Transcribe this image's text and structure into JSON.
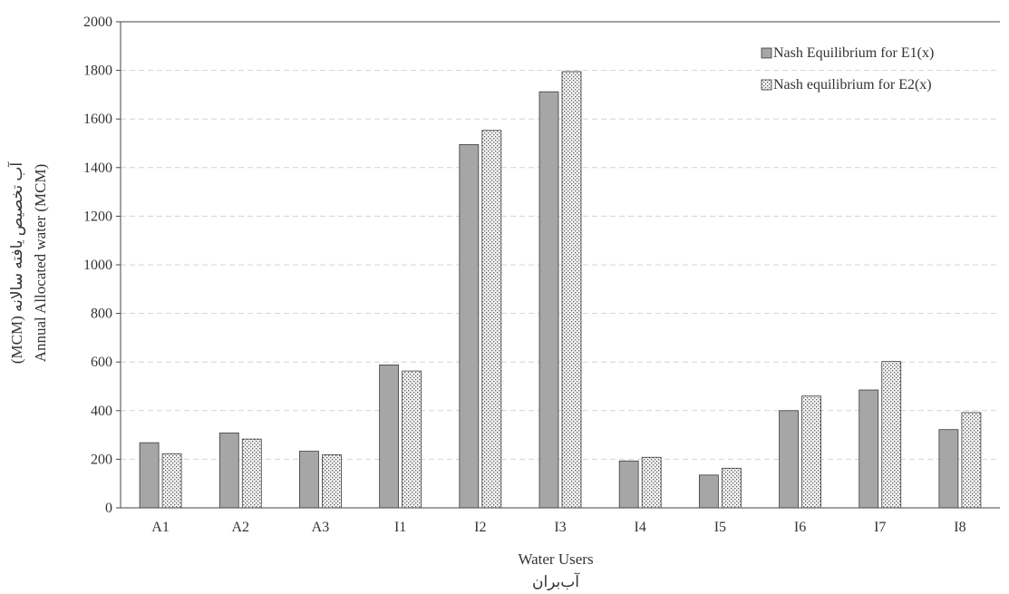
{
  "chart_data": {
    "type": "bar",
    "title": "",
    "xlabel": "Water Users",
    "xlabel_secondary": "آب‌بران",
    "ylabel": "Annual Allocated water (MCM)",
    "ylabel_secondary": "(MCM) آب تخصیص یافته سالانه",
    "ylim": [
      0,
      2000
    ],
    "yticks": [
      0,
      200,
      400,
      600,
      800,
      1000,
      1200,
      1400,
      1600,
      1800,
      2000
    ],
    "ytick_labels": [
      "0",
      "200",
      "400",
      "600",
      "800",
      "1000",
      "1200",
      "1400",
      "1600",
      "1800",
      "2000"
    ],
    "grid": true,
    "legend_position": "top-right",
    "categories": [
      "A1",
      "A2",
      "A3",
      "I1",
      "I2",
      "I3",
      "I4",
      "I5",
      "I6",
      "I7",
      "I8"
    ],
    "series": [
      {
        "name": "Nash Equilibrium for E1(x)",
        "color": "#a6a6a6",
        "pattern": "solid",
        "values": [
          268,
          308,
          233,
          588,
          1495,
          1712,
          193,
          135,
          400,
          485,
          322
        ]
      },
      {
        "name": "Nash equilibrium for E2(x)",
        "color": "#f2f2f2",
        "pattern": "dotted",
        "values": [
          222,
          283,
          218,
          563,
          1553,
          1795,
          208,
          163,
          460,
          602,
          392
        ]
      }
    ]
  }
}
